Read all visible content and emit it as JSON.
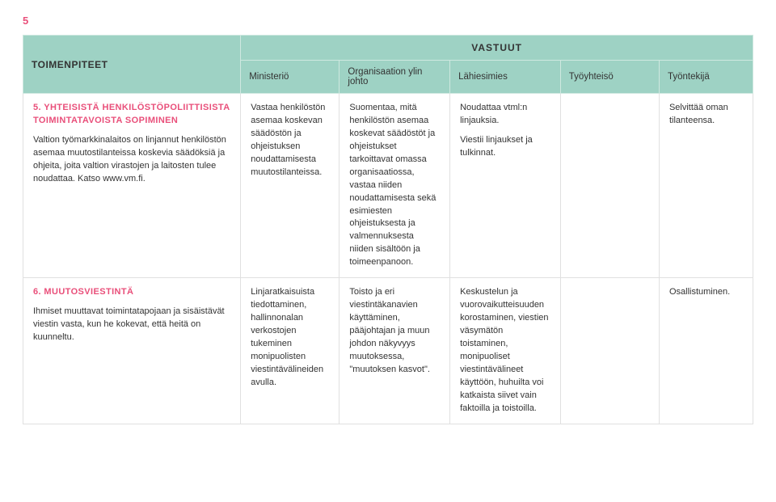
{
  "page_number": "5",
  "headers": {
    "left": "TOIMENPITEET",
    "right_super": "VASTUUT",
    "cols": [
      "Ministeriö",
      "Organisaation ylin johto",
      "Lähiesimies",
      "Työyhteisö",
      "Työntekijä"
    ]
  },
  "rows": [
    {
      "title": "5. YHTEISISTÄ HENKILÖSTÖPOLIITTISISTA TOIMINTATAVOISTA SOPIMINEN",
      "desc": "Valtion työmarkkinalaitos on linjannut henkilöstön asemaa muutostilanteissa koskevia säädöksiä ja ohjeita, joita valtion virastojen ja laitosten tulee noudattaa. Katso www.vm.fi.",
      "c1": "Vastaa henkilöstön asemaa koskevan säädöstön ja ohjeistuksen noudattamisesta muutostilanteissa.",
      "c2": "Suomentaa, mitä henkilöstön asemaa koskevat säädöstöt ja ohjeistukset tarkoittavat omassa organisaatiossa, vastaa niiden noudattamisesta sekä esimiesten ohjeistuksesta ja valmennuksesta niiden sisältöön ja toimeenpanoon.",
      "c3a": "Noudattaa vtml:n linjauksia.",
      "c3b": "Viestii linjaukset ja tulkinnat.",
      "c4": "",
      "c5": "Selvittää oman tilanteensa."
    },
    {
      "title": "6. MUUTOSVIESTINTÄ",
      "desc": "Ihmiset muuttavat toimintatapojaan ja sisäistävät viestin vasta, kun he kokevat, että heitä on kuunneltu.",
      "c1": "Linjaratkaisuista tiedottaminen, hallinnonalan verkostojen tukeminen monipuolisten viestintävälineiden avulla.",
      "c2": "Toisto ja eri viestintäkanavien käyttäminen, pääjohtajan ja muun johdon näkyvyys muutoksessa, \"muutoksen kasvot\".",
      "c3a": "Keskustelun ja vuorovaikutteisuuden korostaminen, viestien väsymätön toistaminen, monipuoliset viestintävälineet käyttöön, huhuilta voi katkaista siivet vain faktoilla ja toistoilla.",
      "c3b": "",
      "c4": "",
      "c5": "Osallistuminen."
    }
  ]
}
